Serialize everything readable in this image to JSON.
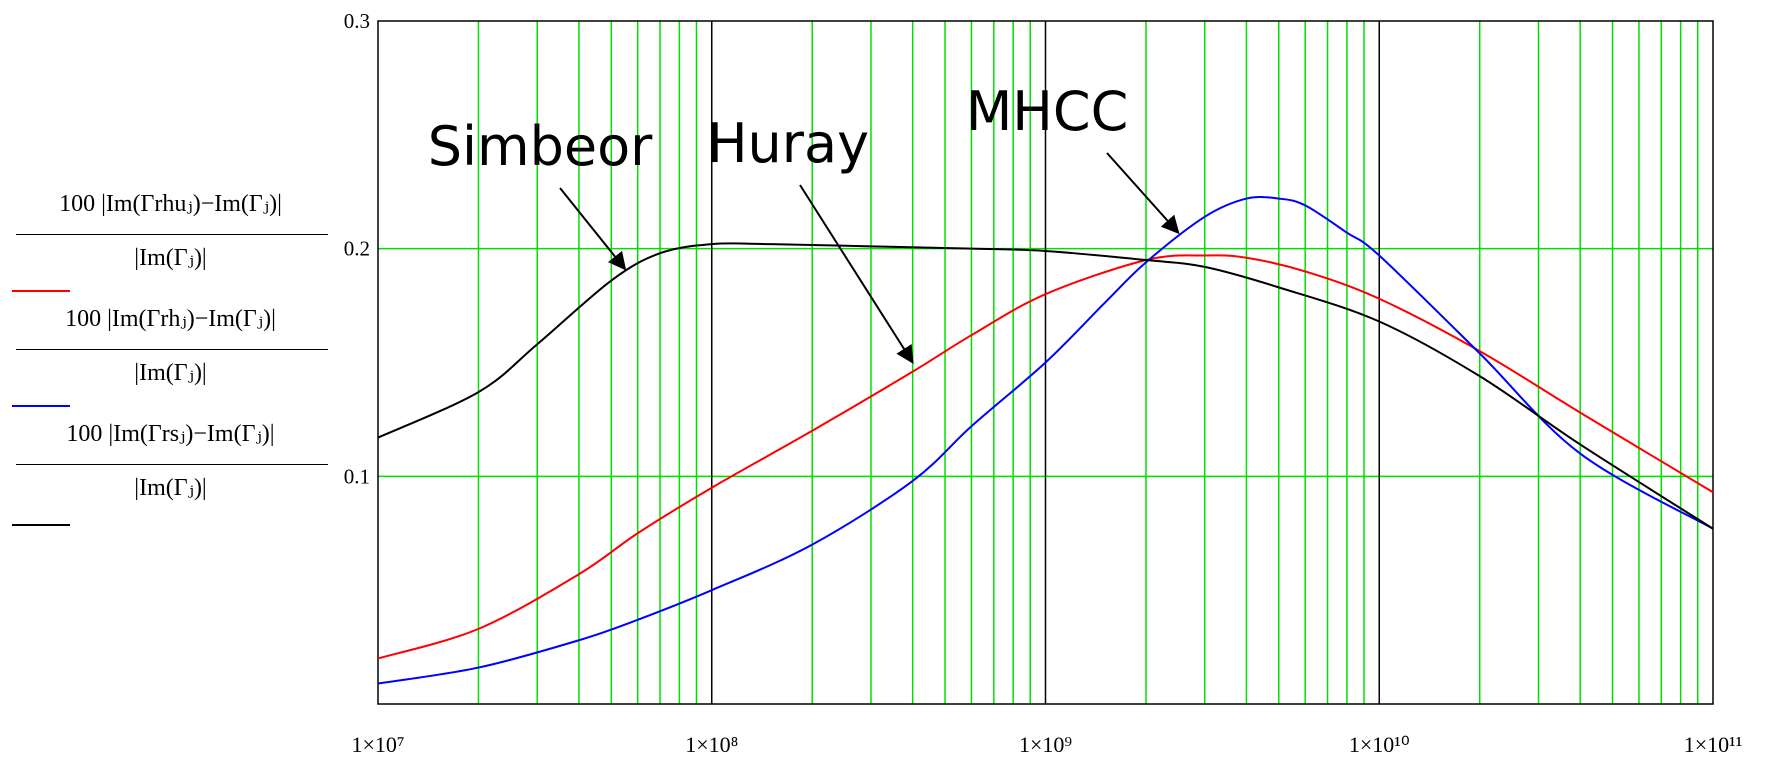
{
  "chart_data": {
    "type": "line",
    "title": "",
    "xlabel": "",
    "ylabel": "",
    "x_scale": "log",
    "xlim": [
      10000000,
      100000000000
    ],
    "ylim": [
      0,
      0.3
    ],
    "grid": true,
    "x_tick_labels": [
      "1×10⁷",
      "1×10⁸",
      "1×10⁹",
      "1×10¹⁰",
      "1×10¹¹"
    ],
    "x_ticks": [
      10000000,
      100000000,
      1000000000,
      10000000000,
      100000000000
    ],
    "y_ticks": [
      0.1,
      0.2,
      0.3
    ],
    "y_tick_labels": [
      "0.1",
      "0.2",
      "0.3"
    ],
    "legend": {
      "placement": "left",
      "entries": [
        {
          "numerator": "100 |Im(Γrhuⱼ)−Im(Γⱼ)|",
          "denominator": "|Im(Γⱼ)|",
          "color": "#ff0000"
        },
        {
          "numerator": "100 |Im(Γrhⱼ)−Im(Γⱼ)|",
          "denominator": "|Im(Γⱼ)|",
          "color": "#0000ff"
        },
        {
          "numerator": "100 |Im(Γrsⱼ)−Im(Γⱼ)|",
          "denominator": "|Im(Γⱼ)|",
          "color": "#000000"
        }
      ]
    },
    "series": [
      {
        "color": "#ff0000",
        "x": [
          10000000,
          20000000,
          40000000,
          60000000,
          100000000,
          200000000,
          400000000,
          600000000,
          1000000000,
          2000000000,
          3000000000,
          4000000000,
          6000000000,
          10000000000,
          20000000000,
          40000000000,
          100000000000
        ],
        "values": [
          0.02,
          0.033,
          0.057,
          0.075,
          0.095,
          0.12,
          0.146,
          0.162,
          0.18,
          0.195,
          0.197,
          0.196,
          0.19,
          0.178,
          0.155,
          0.128,
          0.093
        ]
      },
      {
        "color": "#0000ff",
        "x": [
          10000000,
          20000000,
          40000000,
          60000000,
          100000000,
          200000000,
          400000000,
          600000000,
          1000000000,
          1500000000,
          2000000000,
          3000000000,
          4000000000,
          5000000000,
          6000000000,
          8000000000,
          10000000000,
          20000000000,
          40000000000,
          100000000000
        ],
        "values": [
          0.009,
          0.016,
          0.028,
          0.037,
          0.05,
          0.07,
          0.098,
          0.122,
          0.15,
          0.176,
          0.194,
          0.214,
          0.222,
          0.222,
          0.219,
          0.207,
          0.197,
          0.154,
          0.11,
          0.077
        ]
      },
      {
        "color": "#000000",
        "x": [
          10000000,
          20000000,
          30000000,
          50000000,
          70000000,
          100000000,
          150000000,
          300000000,
          600000000,
          1000000000,
          2000000000,
          3000000000,
          5000000000,
          10000000000,
          20000000000,
          40000000000,
          100000000000
        ],
        "values": [
          0.117,
          0.137,
          0.158,
          0.186,
          0.198,
          0.202,
          0.202,
          0.201,
          0.2,
          0.199,
          0.195,
          0.192,
          0.183,
          0.168,
          0.144,
          0.114,
          0.077
        ]
      }
    ],
    "annotations": [
      {
        "text": "Simbeor",
        "target": [
          55000000,
          0.191
        ]
      },
      {
        "text": "Huray",
        "target": [
          400000000,
          0.15
        ]
      },
      {
        "text": "MHCC",
        "target": [
          2500000000,
          0.207
        ]
      }
    ]
  }
}
